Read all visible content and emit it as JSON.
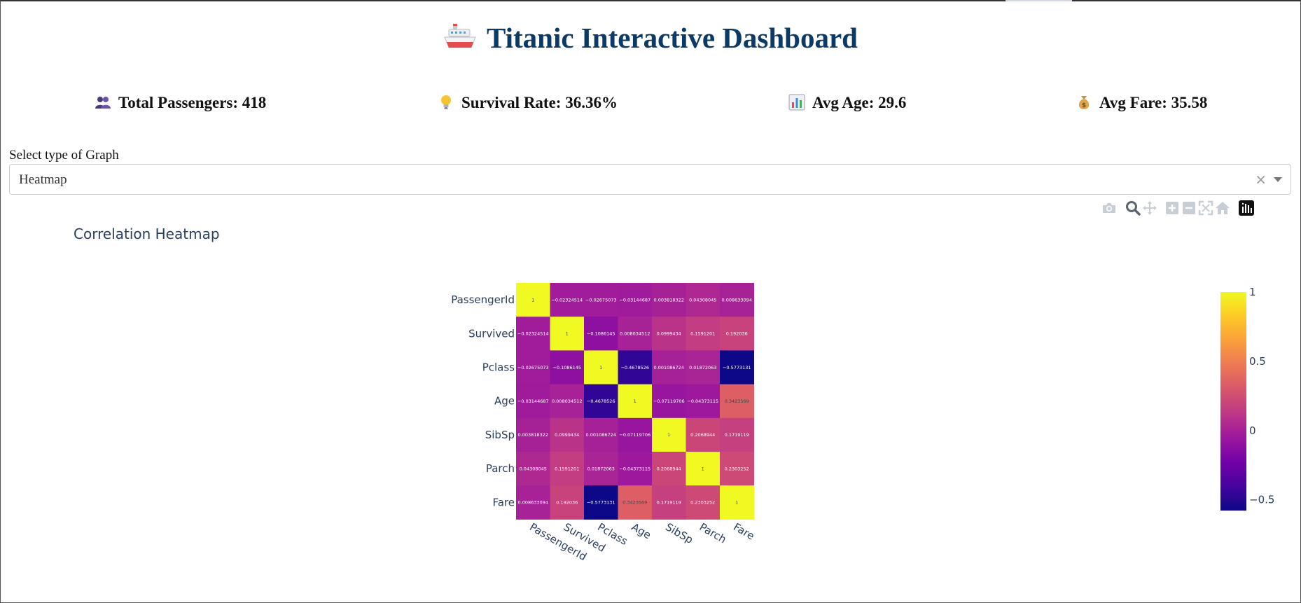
{
  "header": {
    "title": "Titanic Interactive Dashboard",
    "title_icon": "ship-icon"
  },
  "kpis": [
    {
      "icon": "people-icon",
      "label": "Total Passengers: 418"
    },
    {
      "icon": "lightbulb-icon",
      "label": "Survival Rate: 36.36%"
    },
    {
      "icon": "bar-chart-icon",
      "label": "Avg Age: 29.6"
    },
    {
      "icon": "money-bag-icon",
      "label": "Avg Fare: 35.58"
    }
  ],
  "controls": {
    "select_label": "Select type of Graph",
    "selected_value": "Heatmap",
    "clear_glyph": "×"
  },
  "modebar": [
    "camera-icon",
    "zoom-icon",
    "pan-icon",
    "zoom-in-icon",
    "zoom-out-icon",
    "autoscale-icon",
    "reset-axes-icon",
    "plotly-logo-icon"
  ],
  "chart_data": {
    "type": "heatmap",
    "title": "Correlation Heatmap",
    "x": [
      "PassengerId",
      "Survived",
      "Pclass",
      "Age",
      "SibSp",
      "Parch",
      "Fare"
    ],
    "y": [
      "PassengerId",
      "Survived",
      "Pclass",
      "Age",
      "SibSp",
      "Parch",
      "Fare"
    ],
    "z": [
      [
        1,
        -0.02324514,
        -0.02675073,
        -0.03144687,
        0.003818322,
        0.04308045,
        0.008633094
      ],
      [
        -0.02324514,
        1,
        -0.1086145,
        0.008034512,
        0.0999434,
        0.1591201,
        0.192036
      ],
      [
        -0.02675073,
        -0.1086145,
        1,
        -0.4678526,
        0.001086724,
        0.01872063,
        -0.5773131
      ],
      [
        -0.03144687,
        0.008034512,
        -0.4678526,
        1,
        -0.07119706,
        -0.04373115,
        0.3423569
      ],
      [
        0.003818322,
        0.0999434,
        0.001086724,
        -0.07119706,
        1,
        0.2068944,
        0.1719119
      ],
      [
        0.04308045,
        0.1591201,
        0.01872063,
        -0.04373115,
        0.2068944,
        1,
        0.2303252
      ],
      [
        0.008633094,
        0.192036,
        -0.5773131,
        0.3423569,
        0.1719119,
        0.2303252,
        1
      ]
    ],
    "text": [
      [
        "1",
        "−0.02324514",
        "−0.02675073",
        "−0.03144687",
        "0.003818322",
        "0.04308045",
        "0.008633094"
      ],
      [
        "−0.02324514",
        "1",
        "−0.1086145",
        "0.008034512",
        "0.0999434",
        "0.1591201",
        "0.192036"
      ],
      [
        "−0.02675073",
        "−0.1086145",
        "1",
        "−0.4678526",
        "0.001086724",
        "0.01872063",
        "−0.5773131"
      ],
      [
        "−0.03144687",
        "0.008034512",
        "−0.4678526",
        "1",
        "−0.07119706",
        "−0.04373115",
        "0.3423569"
      ],
      [
        "0.003818322",
        "0.0999434",
        "0.001086724",
        "−0.07119706",
        "1",
        "0.2068944",
        "0.1719119"
      ],
      [
        "0.04308045",
        "0.1591201",
        "0.01872063",
        "−0.04373115",
        "0.2068944",
        "1",
        "0.2303252"
      ],
      [
        "0.008633094",
        "0.192036",
        "−0.5773131",
        "0.3423569",
        "0.1719119",
        "0.2303252",
        "1"
      ]
    ],
    "colorscale": "plasma",
    "zrange": [
      -0.5773131,
      1
    ],
    "colorbar_ticks": [
      {
        "value": 1,
        "label": "1"
      },
      {
        "value": 0.5,
        "label": "0.5"
      },
      {
        "value": 0,
        "label": "0"
      },
      {
        "value": -0.5,
        "label": "−0.5"
      }
    ],
    "x_tick_angle": 30
  }
}
